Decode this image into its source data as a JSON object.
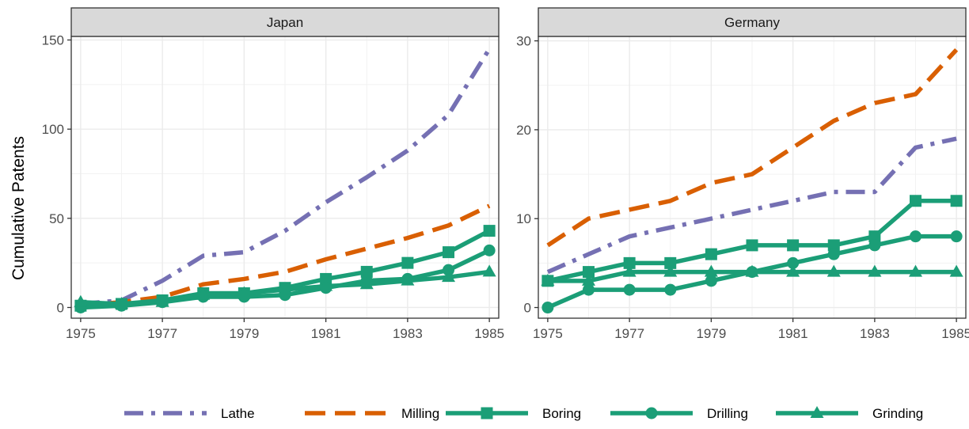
{
  "ylabel": "Cumulative Patents",
  "colors": {
    "Lathe": "#7570b3",
    "Milling": "#d95f02",
    "Boring": "#1b9e77",
    "Drilling": "#1b9e77",
    "Grinding": "#1b9e77"
  },
  "chart_data": [
    {
      "type": "line",
      "title": "Japan",
      "x": [
        1975,
        1976,
        1977,
        1978,
        1979,
        1980,
        1981,
        1982,
        1983,
        1984,
        1985
      ],
      "xticks": [
        "1975",
        "1977",
        "1979",
        "1981",
        "1983",
        "1985"
      ],
      "yticks": [
        "0",
        "50",
        "100",
        "150"
      ],
      "ylim": [
        -6,
        152
      ],
      "grid": true,
      "series": [
        {
          "name": "Lathe",
          "values": [
            2,
            4,
            15,
            29,
            31,
            43,
            59,
            73,
            88,
            108,
            145
          ]
        },
        {
          "name": "Milling",
          "values": [
            1,
            3,
            6,
            13,
            16,
            20,
            27,
            33,
            39,
            46,
            57
          ]
        },
        {
          "name": "Boring",
          "values": [
            1,
            2,
            4,
            8,
            8,
            11,
            16,
            20,
            25,
            31,
            43
          ]
        },
        {
          "name": "Drilling",
          "values": [
            0,
            1,
            3,
            6,
            6,
            7,
            11,
            15,
            16,
            21,
            32
          ]
        },
        {
          "name": "Grinding",
          "values": [
            3,
            2,
            3,
            7,
            8,
            10,
            12,
            13,
            15,
            17,
            20
          ]
        }
      ]
    },
    {
      "type": "line",
      "title": "Germany",
      "x": [
        1975,
        1976,
        1977,
        1978,
        1979,
        1980,
        1981,
        1982,
        1983,
        1984,
        1985
      ],
      "xticks": [
        "1975",
        "1977",
        "1979",
        "1981",
        "1983",
        "1985"
      ],
      "yticks": [
        "0",
        "10",
        "20",
        "30"
      ],
      "ylim": [
        -1.2,
        30.5
      ],
      "grid": true,
      "series": [
        {
          "name": "Lathe",
          "values": [
            4,
            6,
            8,
            9,
            10,
            11,
            12,
            13,
            13,
            18,
            19
          ]
        },
        {
          "name": "Milling",
          "values": [
            7,
            10,
            11,
            12,
            14,
            15,
            18,
            21,
            23,
            24,
            29
          ]
        },
        {
          "name": "Boring",
          "values": [
            3,
            4,
            5,
            5,
            6,
            7,
            7,
            7,
            8,
            12,
            12
          ]
        },
        {
          "name": "Drilling",
          "values": [
            0,
            2,
            2,
            2,
            3,
            4,
            5,
            6,
            7,
            8,
            8
          ]
        },
        {
          "name": "Grinding",
          "values": [
            3,
            3,
            4,
            4,
            4,
            4,
            4,
            4,
            4,
            4,
            4
          ]
        }
      ]
    }
  ],
  "legend": [
    {
      "name": "Lathe",
      "dash": "dotdash",
      "marker": "none"
    },
    {
      "name": "Milling",
      "dash": "dashed",
      "marker": "none"
    },
    {
      "name": "Boring",
      "dash": "solid",
      "marker": "square"
    },
    {
      "name": "Drilling",
      "dash": "solid",
      "marker": "circle"
    },
    {
      "name": "Grinding",
      "dash": "solid",
      "marker": "triangle"
    }
  ]
}
